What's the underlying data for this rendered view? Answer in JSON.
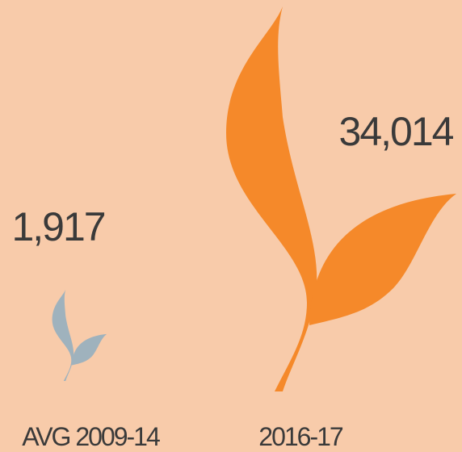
{
  "chart_data": {
    "type": "pictograph",
    "categories": [
      "AVG 2009-14",
      "2016-17"
    ],
    "values": [
      1917,
      34014
    ],
    "value_labels": [
      "1,917",
      "34,014"
    ],
    "colors": [
      "#9fb2bd",
      "#f5892a"
    ],
    "background": "#f8cbaa"
  }
}
